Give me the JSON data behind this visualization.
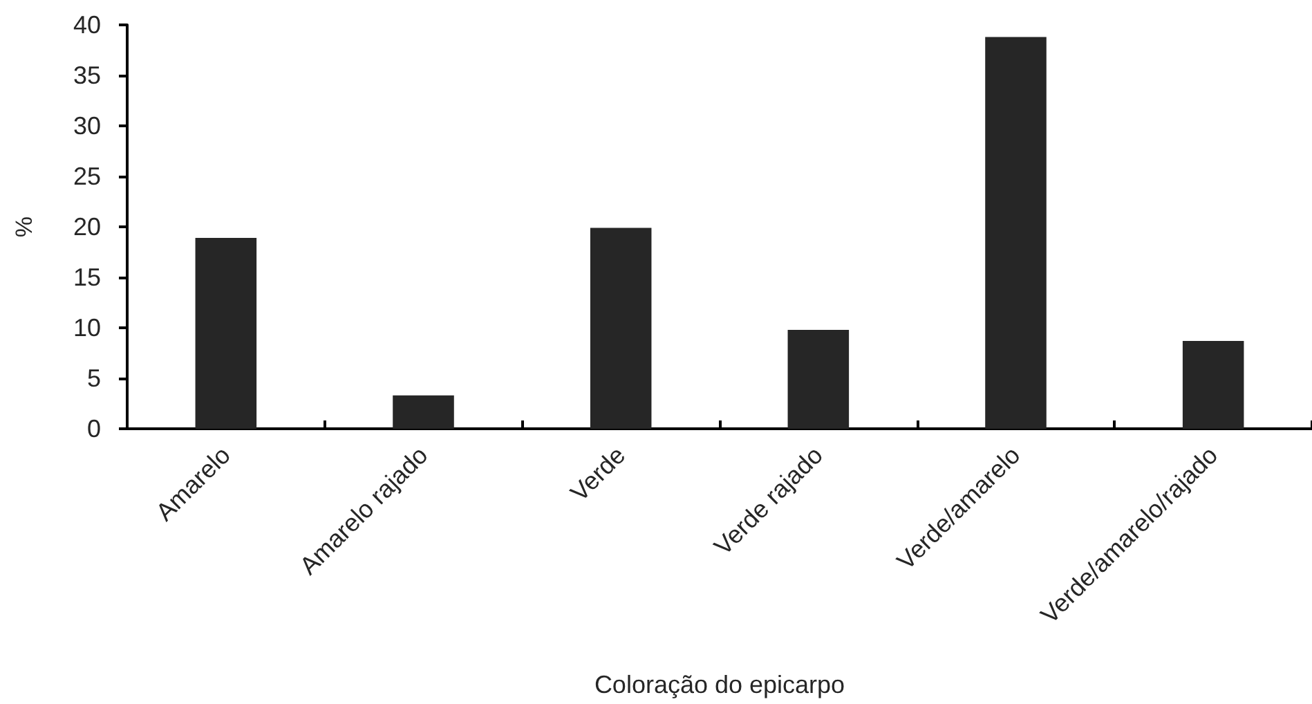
{
  "chart_data": {
    "type": "bar",
    "xlabel": "Coloração do epicarpo",
    "ylabel": "%",
    "categories": [
      "Amarelo",
      "Amarelo rajado",
      "Verde",
      "Verde rajado",
      "Verde/amarelo",
      "Verde/amarelo/rajado"
    ],
    "values": [
      18.9,
      3.3,
      19.9,
      9.8,
      38.8,
      8.7
    ],
    "color": "#262626",
    "ylim": [
      0,
      40
    ],
    "yticks": [
      0,
      5,
      10,
      15,
      20,
      25,
      30,
      35,
      40
    ],
    "grid": false
  }
}
